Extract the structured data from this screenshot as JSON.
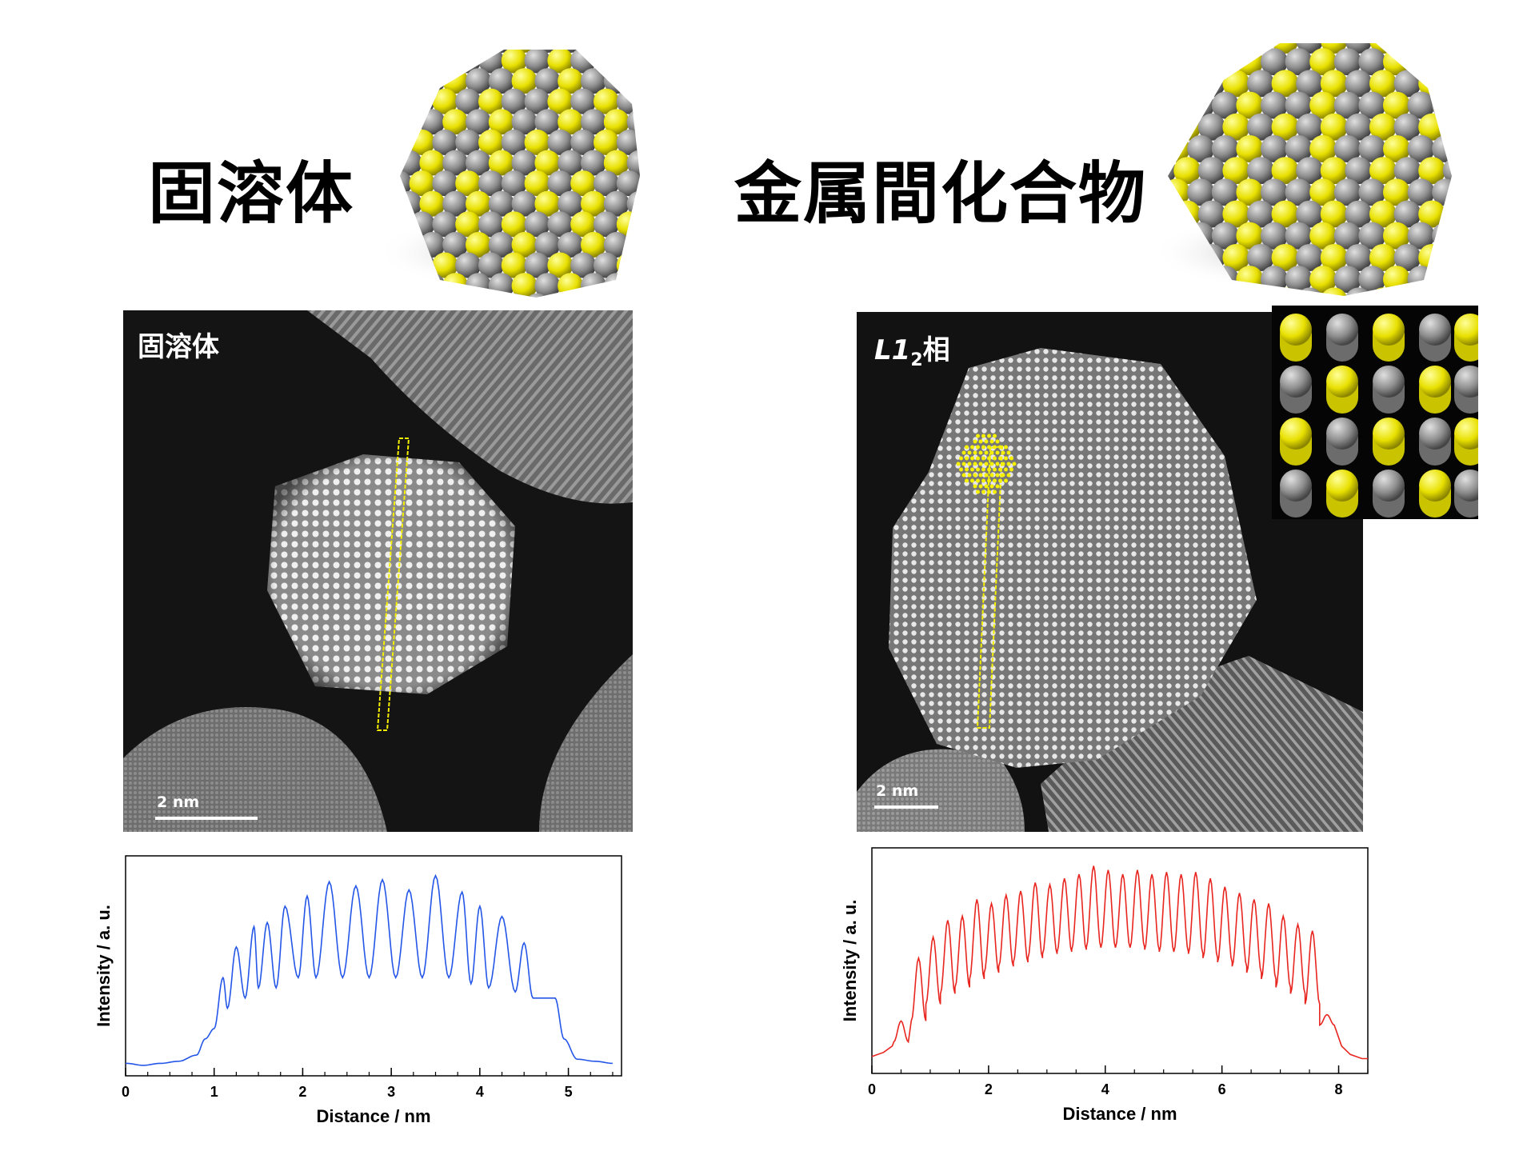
{
  "left": {
    "title": "固溶体",
    "stem_label": "固溶体",
    "scalebar": "2 nm"
  },
  "right": {
    "title": "金属間化合物",
    "stem_label_main": "L1",
    "stem_label_sub": "2",
    "stem_label_suffix": "相",
    "scalebar": "2 nm"
  },
  "colors": {
    "yellow": "#f2f200",
    "gray": "#8c8c8c",
    "blue": "#2456e8",
    "red": "#e8251f"
  },
  "chart_data": [
    {
      "type": "line",
      "title": "",
      "xlabel": "Distance / nm",
      "ylabel": "Intensity / a. u.",
      "xlim": [
        0,
        5.6
      ],
      "xticks": [
        0,
        1,
        2,
        3,
        4,
        5
      ],
      "series": [
        {
          "color": "#2456e8",
          "x": [
            0,
            0.2,
            0.4,
            0.6,
            0.8,
            0.9,
            1.0,
            1.1,
            1.15,
            1.25,
            1.35,
            1.45,
            1.5,
            1.6,
            1.7,
            1.8,
            1.95,
            2.05,
            2.15,
            2.3,
            2.45,
            2.6,
            2.75,
            2.9,
            3.05,
            3.2,
            3.35,
            3.5,
            3.65,
            3.8,
            3.9,
            4.0,
            4.1,
            4.25,
            4.4,
            4.5,
            4.6,
            4.7,
            4.85,
            4.95,
            5.1,
            5.3,
            5.5
          ],
          "y": [
            0.03,
            0.02,
            0.03,
            0.04,
            0.07,
            0.15,
            0.2,
            0.45,
            0.3,
            0.6,
            0.35,
            0.7,
            0.4,
            0.72,
            0.4,
            0.8,
            0.45,
            0.85,
            0.45,
            0.92,
            0.45,
            0.9,
            0.45,
            0.93,
            0.45,
            0.88,
            0.45,
            0.95,
            0.45,
            0.87,
            0.42,
            0.8,
            0.4,
            0.75,
            0.38,
            0.62,
            0.35,
            0.35,
            0.35,
            0.15,
            0.05,
            0.04,
            0.03
          ]
        }
      ]
    },
    {
      "type": "line",
      "title": "",
      "xlabel": "Distance / nm",
      "ylabel": "Intensity / a. u.",
      "xlim": [
        0,
        8.5
      ],
      "xticks": [
        0,
        2,
        4,
        6,
        8
      ],
      "series": [
        {
          "color": "#e8251f",
          "peaks": [
            0.5,
            0.8,
            1.05,
            1.3,
            1.55,
            1.8,
            2.05,
            2.3,
            2.55,
            2.8,
            3.05,
            3.3,
            3.55,
            3.8,
            4.05,
            4.3,
            4.55,
            4.8,
            5.05,
            5.3,
            5.55,
            5.8,
            6.05,
            6.3,
            6.55,
            6.8,
            7.05,
            7.3,
            7.55,
            7.8
          ],
          "peak_heights": [
            0.22,
            0.52,
            0.62,
            0.7,
            0.72,
            0.8,
            0.78,
            0.82,
            0.84,
            0.88,
            0.87,
            0.9,
            0.92,
            0.96,
            0.94,
            0.92,
            0.94,
            0.92,
            0.93,
            0.92,
            0.93,
            0.9,
            0.86,
            0.83,
            0.8,
            0.78,
            0.72,
            0.68,
            0.65,
            0.25
          ],
          "valley_base": [
            0.12,
            0.22,
            0.3,
            0.35,
            0.38,
            0.42,
            0.45,
            0.48,
            0.5,
            0.52,
            0.54,
            0.55,
            0.56,
            0.57,
            0.57,
            0.57,
            0.57,
            0.56,
            0.55,
            0.55,
            0.54,
            0.52,
            0.5,
            0.48,
            0.45,
            0.42,
            0.38,
            0.35,
            0.3,
            0.2
          ]
        }
      ]
    }
  ]
}
